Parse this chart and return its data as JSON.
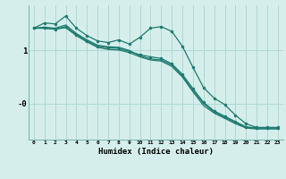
{
  "xlabel": "Humidex (Indice chaleur)",
  "background_color": "#d5eeeb",
  "grid_color": "#afd9d4",
  "line_color": "#1e7a70",
  "x": [
    0,
    1,
    2,
    3,
    4,
    5,
    6,
    7,
    8,
    9,
    10,
    11,
    12,
    13,
    14,
    15,
    16,
    17,
    18,
    19,
    20,
    21,
    22,
    23
  ],
  "line1": [
    1.42,
    1.52,
    1.5,
    1.65,
    1.42,
    1.28,
    1.18,
    1.15,
    1.2,
    1.12,
    1.25,
    1.42,
    1.45,
    1.36,
    1.08,
    0.68,
    0.3,
    0.1,
    -0.02,
    -0.22,
    -0.38,
    -0.45,
    -0.45,
    -0.45
  ],
  "line2": [
    1.42,
    1.42,
    1.4,
    1.45,
    1.3,
    1.18,
    1.08,
    1.05,
    1.04,
    0.98,
    0.92,
    0.88,
    0.85,
    0.75,
    0.55,
    0.28,
    0.02,
    -0.14,
    -0.24,
    -0.34,
    -0.44,
    -0.46,
    -0.46,
    -0.46
  ],
  "line3": [
    1.42,
    1.44,
    1.42,
    1.48,
    1.32,
    1.2,
    1.1,
    1.07,
    1.06,
    1.0,
    0.9,
    0.84,
    0.82,
    0.73,
    0.52,
    0.25,
    0.0,
    -0.16,
    -0.26,
    -0.36,
    -0.45,
    -0.46,
    -0.46,
    -0.46
  ],
  "line4": [
    1.42,
    1.42,
    1.4,
    1.43,
    1.28,
    1.16,
    1.06,
    1.02,
    1.01,
    0.96,
    0.88,
    0.82,
    0.8,
    0.7,
    0.5,
    0.22,
    -0.04,
    -0.18,
    -0.28,
    -0.38,
    -0.46,
    -0.48,
    -0.48,
    -0.48
  ],
  "yticks": [
    1.0,
    0.0
  ],
  "ytick_labels": [
    "1",
    "-0"
  ],
  "ylim": [
    -0.68,
    1.85
  ],
  "xlim": [
    -0.5,
    23.5
  ]
}
